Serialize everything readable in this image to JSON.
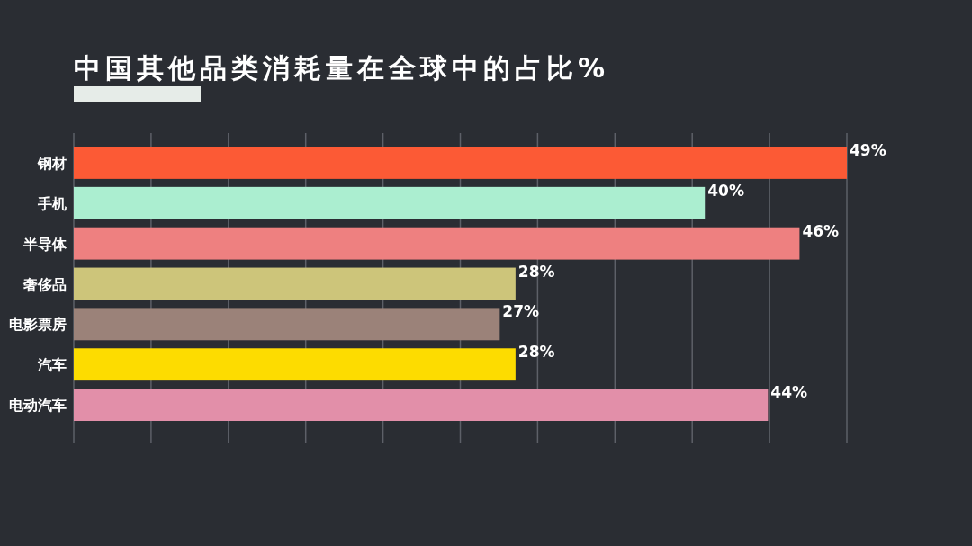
{
  "chart_data": {
    "type": "bar",
    "orientation": "horizontal",
    "title": "中国其他品类消耗量在全球中的占比%",
    "categories": [
      "钢材",
      "手机",
      "半导体",
      "奢侈品",
      "电影票房",
      "汽车",
      "电动汽车"
    ],
    "values": [
      49,
      40,
      46,
      28,
      27,
      28,
      44
    ],
    "colors": [
      "#fc5a35",
      "#abeed0",
      "#ee8080",
      "#cdc57a",
      "#9b8279",
      "#fddc00",
      "#e28fa9"
    ],
    "value_labels": [
      "49%",
      "40%",
      "46%",
      "28%",
      "27%",
      "28%",
      "44%"
    ],
    "xlim": [
      0,
      49
    ],
    "xticks": [
      {
        "value": 0,
        "label": null
      },
      {
        "value": 4.9,
        "label": null
      },
      {
        "value": 9.8,
        "label": null
      },
      {
        "value": 14.7,
        "label": null
      },
      {
        "value": 19.6,
        "label": null
      },
      {
        "value": 24.5,
        "label": null
      },
      {
        "value": 29.4,
        "label": null
      },
      {
        "value": 34.3,
        "label": null
      },
      {
        "value": 39.2,
        "label": null
      },
      {
        "value": 44.1,
        "label": null
      },
      {
        "value": 49,
        "label": null
      }
    ],
    "grid": "x",
    "tick_labels": "y"
  }
}
